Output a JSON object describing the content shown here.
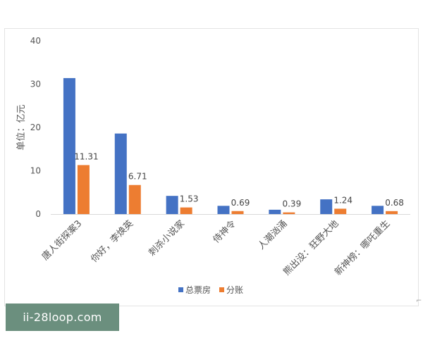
{
  "chart_data": {
    "type": "bar",
    "title": "",
    "xlabel": "",
    "ylabel": "单位：亿元",
    "ylim": [
      0,
      40
    ],
    "yticks": [
      0,
      10,
      20,
      30,
      40
    ],
    "categories": [
      "唐人街探案3",
      "你好，李焕英",
      "刺杀小说家",
      "侍神令",
      "人潮汹涌",
      "熊出没：狂野大地",
      "新神榜：哪吒重生"
    ],
    "series": [
      {
        "name": "总票房",
        "color": "#4472c4",
        "values": [
          31.4,
          18.6,
          4.2,
          1.9,
          1.0,
          3.4,
          1.9
        ],
        "labels": [
          null,
          null,
          null,
          null,
          null,
          null,
          null
        ]
      },
      {
        "name": "分账",
        "color": "#ed7d31",
        "values": [
          11.31,
          6.71,
          1.53,
          0.69,
          0.39,
          1.24,
          0.68
        ],
        "labels": [
          "11.31",
          "6.71",
          "1.53",
          "0.69",
          "0.39",
          "1.24",
          "0.68"
        ]
      }
    ],
    "grid": false,
    "legend": "bottom"
  },
  "watermark": {
    "text": "ii-28loop.com"
  }
}
